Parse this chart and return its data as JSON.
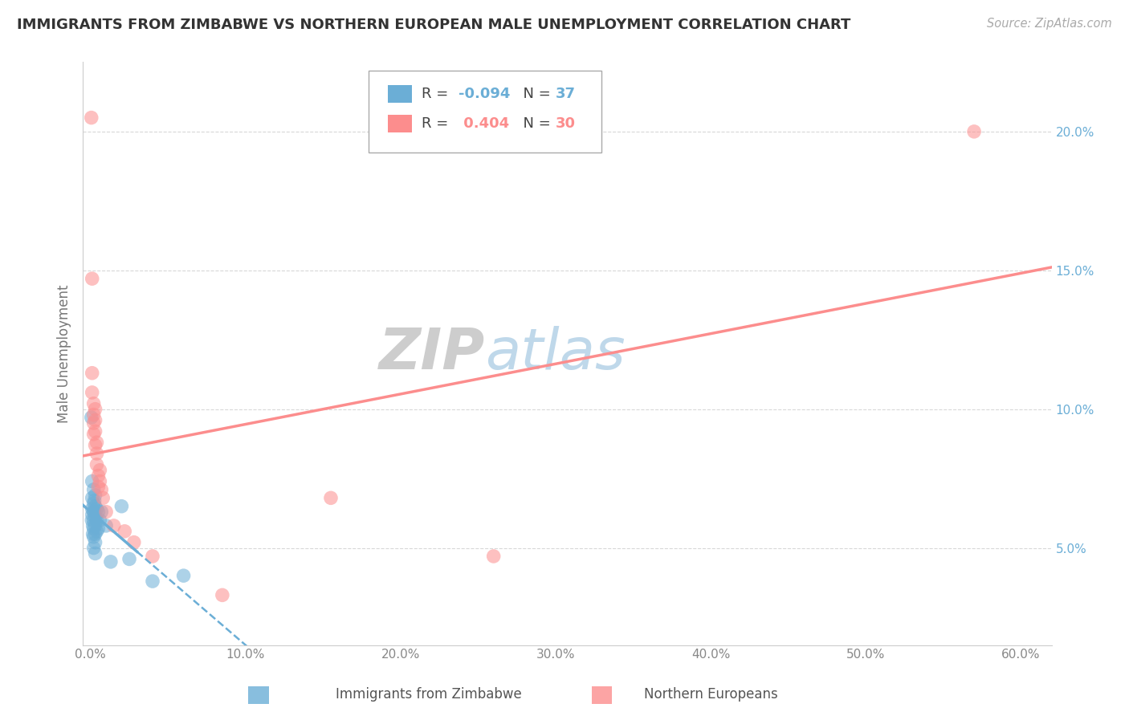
{
  "title": "IMMIGRANTS FROM ZIMBABWE VS NORTHERN EUROPEAN MALE UNEMPLOYMENT CORRELATION CHART",
  "source": "Source: ZipAtlas.com",
  "ylabel": "Male Unemployment",
  "xlim": [
    -0.005,
    0.62
  ],
  "ylim": [
    0.015,
    0.225
  ],
  "yticks": [
    0.05,
    0.1,
    0.15,
    0.2
  ],
  "ytick_labels": [
    "5.0%",
    "10.0%",
    "15.0%",
    "20.0%"
  ],
  "xticks": [
    0.0,
    0.1,
    0.2,
    0.3,
    0.4,
    0.5,
    0.6
  ],
  "xtick_labels": [
    "0.0%",
    "10.0%",
    "20.0%",
    "30.0%",
    "40.0%",
    "50.0%",
    "60.0%"
  ],
  "blue_R": -0.094,
  "blue_N": 37,
  "pink_R": 0.404,
  "pink_N": 30,
  "blue_color": "#6baed6",
  "pink_color": "#fc8d8d",
  "blue_scatter": [
    [
      0.0005,
      0.097
    ],
    [
      0.0008,
      0.06
    ],
    [
      0.001,
      0.074
    ],
    [
      0.001,
      0.068
    ],
    [
      0.001,
      0.064
    ],
    [
      0.001,
      0.062
    ],
    [
      0.0015,
      0.058
    ],
    [
      0.0015,
      0.055
    ],
    [
      0.002,
      0.071
    ],
    [
      0.002,
      0.066
    ],
    [
      0.002,
      0.063
    ],
    [
      0.002,
      0.06
    ],
    [
      0.002,
      0.057
    ],
    [
      0.002,
      0.054
    ],
    [
      0.002,
      0.05
    ],
    [
      0.0025,
      0.067
    ],
    [
      0.0025,
      0.063
    ],
    [
      0.003,
      0.069
    ],
    [
      0.003,
      0.065
    ],
    [
      0.003,
      0.061
    ],
    [
      0.003,
      0.058
    ],
    [
      0.003,
      0.055
    ],
    [
      0.003,
      0.052
    ],
    [
      0.003,
      0.048
    ],
    [
      0.004,
      0.064
    ],
    [
      0.004,
      0.06
    ],
    [
      0.004,
      0.056
    ],
    [
      0.005,
      0.063
    ],
    [
      0.005,
      0.057
    ],
    [
      0.006,
      0.06
    ],
    [
      0.007,
      0.063
    ],
    [
      0.01,
      0.058
    ],
    [
      0.013,
      0.045
    ],
    [
      0.02,
      0.065
    ],
    [
      0.025,
      0.046
    ],
    [
      0.04,
      0.038
    ],
    [
      0.06,
      0.04
    ]
  ],
  "pink_scatter": [
    [
      0.0005,
      0.205
    ],
    [
      0.001,
      0.147
    ],
    [
      0.001,
      0.113
    ],
    [
      0.001,
      0.106
    ],
    [
      0.002,
      0.102
    ],
    [
      0.002,
      0.098
    ],
    [
      0.002,
      0.095
    ],
    [
      0.002,
      0.091
    ],
    [
      0.003,
      0.1
    ],
    [
      0.003,
      0.096
    ],
    [
      0.003,
      0.092
    ],
    [
      0.003,
      0.087
    ],
    [
      0.004,
      0.088
    ],
    [
      0.004,
      0.084
    ],
    [
      0.004,
      0.08
    ],
    [
      0.005,
      0.076
    ],
    [
      0.005,
      0.072
    ],
    [
      0.006,
      0.078
    ],
    [
      0.006,
      0.074
    ],
    [
      0.007,
      0.071
    ],
    [
      0.008,
      0.068
    ],
    [
      0.01,
      0.063
    ],
    [
      0.015,
      0.058
    ],
    [
      0.022,
      0.056
    ],
    [
      0.028,
      0.052
    ],
    [
      0.04,
      0.047
    ],
    [
      0.085,
      0.033
    ],
    [
      0.155,
      0.068
    ],
    [
      0.26,
      0.047
    ],
    [
      0.57,
      0.2
    ]
  ],
  "watermark_zip": "ZIP",
  "watermark_atlas": "atlas",
  "background_color": "#ffffff",
  "grid_color": "#d8d8d8",
  "legend_title_blue": "R = ",
  "legend_R_blue": "-0.094",
  "legend_N_label": "N = ",
  "legend_N_blue": "37",
  "legend_R_pink": "0.404",
  "legend_N_pink": "30"
}
